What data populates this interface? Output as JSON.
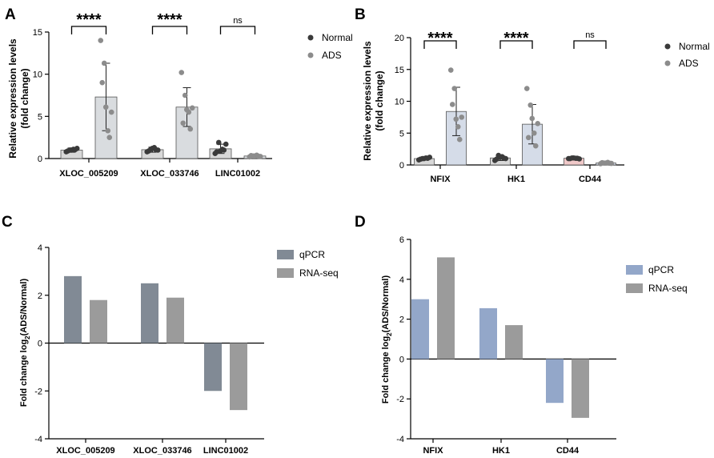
{
  "panel_labels": [
    "A",
    "B",
    "C",
    "D"
  ],
  "significance_labels": {
    "sig": "****",
    "ns": "ns"
  },
  "colors": {
    "normal_dot": "#3a3a3a",
    "ads_dot": "#8c8c8c",
    "ads_bar_A": "#d9dcdf",
    "normal_bar_A": "#d8d8d8",
    "ads_bar_B": "#d5dce8",
    "cd44_normal_bar_B": "#f0c9c9",
    "qpcr_C": "#818a95",
    "rnaseq": "#9b9b9b",
    "qpcr_D": "#93a7c9"
  },
  "chart_data": [
    {
      "panel": "A",
      "type": "bar",
      "categories": [
        "XLOC_005209",
        "XLOC_033746",
        "LINC01002"
      ],
      "series": [
        {
          "name": "Normal",
          "values": [
            1.0,
            1.05,
            1.15
          ],
          "sd": [
            0.25,
            0.3,
            0.55
          ],
          "points": [
            [
              0.8,
              1.0,
              1.1,
              1.2,
              0.9,
              1.0,
              1.05
            ],
            [
              0.8,
              1.1,
              1.3,
              1.0,
              0.9,
              1.2,
              1.05
            ],
            [
              0.6,
              1.9,
              1.1,
              1.7,
              0.8,
              0.9,
              1.0
            ]
          ]
        },
        {
          "name": "ADS",
          "values": [
            7.3,
            6.1,
            0.3
          ],
          "sd": [
            4.0,
            2.3,
            0.12
          ],
          "points": [
            [
              14.0,
              11.3,
              3.3,
              5.5,
              9.0,
              6.1,
              2.5
            ],
            [
              10.2,
              7.5,
              5.5,
              6.0,
              4.2,
              5.8,
              3.5
            ],
            [
              0.2,
              0.3,
              0.4,
              0.25,
              0.35,
              0.3,
              0.28
            ]
          ]
        }
      ],
      "significance": [
        "****",
        "****",
        "ns"
      ],
      "ylabel": "Relative expression levels (fold change)",
      "ylim": [
        0,
        15
      ],
      "yticks": [
        0,
        5,
        10,
        15
      ],
      "legend": [
        "Normal",
        "ADS"
      ]
    },
    {
      "panel": "B",
      "type": "bar",
      "categories": [
        "NFIX",
        "HK1",
        "CD44"
      ],
      "series": [
        {
          "name": "Normal",
          "values": [
            1.0,
            1.1,
            1.05
          ],
          "sd": [
            0.25,
            0.4,
            0.15
          ],
          "points": [
            [
              0.8,
              1.0,
              1.1,
              1.2,
              0.9,
              1.0,
              1.05
            ],
            [
              0.7,
              1.5,
              1.3,
              1.0,
              0.9,
              1.2,
              1.1
            ],
            [
              1.0,
              1.1,
              1.05,
              0.95,
              1.0,
              1.1,
              1.05
            ]
          ]
        },
        {
          "name": "ADS",
          "values": [
            8.4,
            6.4,
            0.3
          ],
          "sd": [
            3.8,
            3.1,
            0.1
          ],
          "points": [
            [
              14.9,
              12.0,
              6.0,
              7.5,
              9.5,
              7.2,
              4.0
            ],
            [
              12.0,
              9.4,
              5.0,
              6.5,
              4.3,
              7.3,
              3.0
            ],
            [
              0.2,
              0.3,
              0.4,
              0.25,
              0.35,
              0.3,
              0.28
            ]
          ]
        }
      ],
      "significance": [
        "****",
        "****",
        "ns"
      ],
      "ylabel": "Relative expression levels (fold change)",
      "ylim": [
        0,
        20
      ],
      "yticks": [
        0,
        5,
        10,
        15,
        20
      ],
      "legend": [
        "Normal",
        "ADS"
      ]
    },
    {
      "panel": "C",
      "type": "bar",
      "categories": [
        "XLOC_005209",
        "XLOC_033746",
        "LINC01002"
      ],
      "series": [
        {
          "name": "qPCR",
          "values": [
            2.8,
            2.5,
            -2.0
          ]
        },
        {
          "name": "RNA-seq",
          "values": [
            1.8,
            1.9,
            -2.8
          ]
        }
      ],
      "ylabel": "Fold change log2(ADS/Normal)",
      "ylabel_parts": [
        "Fold change log",
        "2",
        "(ADS/Normal)"
      ],
      "ylim": [
        -4,
        4
      ],
      "yticks": [
        -4,
        -2,
        0,
        2,
        4
      ],
      "legend": [
        "qPCR",
        "RNA-seq"
      ]
    },
    {
      "panel": "D",
      "type": "bar",
      "categories": [
        "NFIX",
        "HK1",
        "CD44"
      ],
      "series": [
        {
          "name": "qPCR",
          "values": [
            3.0,
            2.55,
            -2.2
          ]
        },
        {
          "name": "RNA-seq",
          "values": [
            5.1,
            1.7,
            -2.95
          ]
        }
      ],
      "ylabel": "Fold change log2(ADS/Normal)",
      "ylabel_parts": [
        "Fold change log",
        "2",
        "(ADS/Normal)"
      ],
      "ylim": [
        -4,
        6
      ],
      "yticks": [
        -4,
        -2,
        0,
        2,
        4,
        6
      ],
      "legend": [
        "qPCR",
        "RNA-seq"
      ]
    }
  ]
}
